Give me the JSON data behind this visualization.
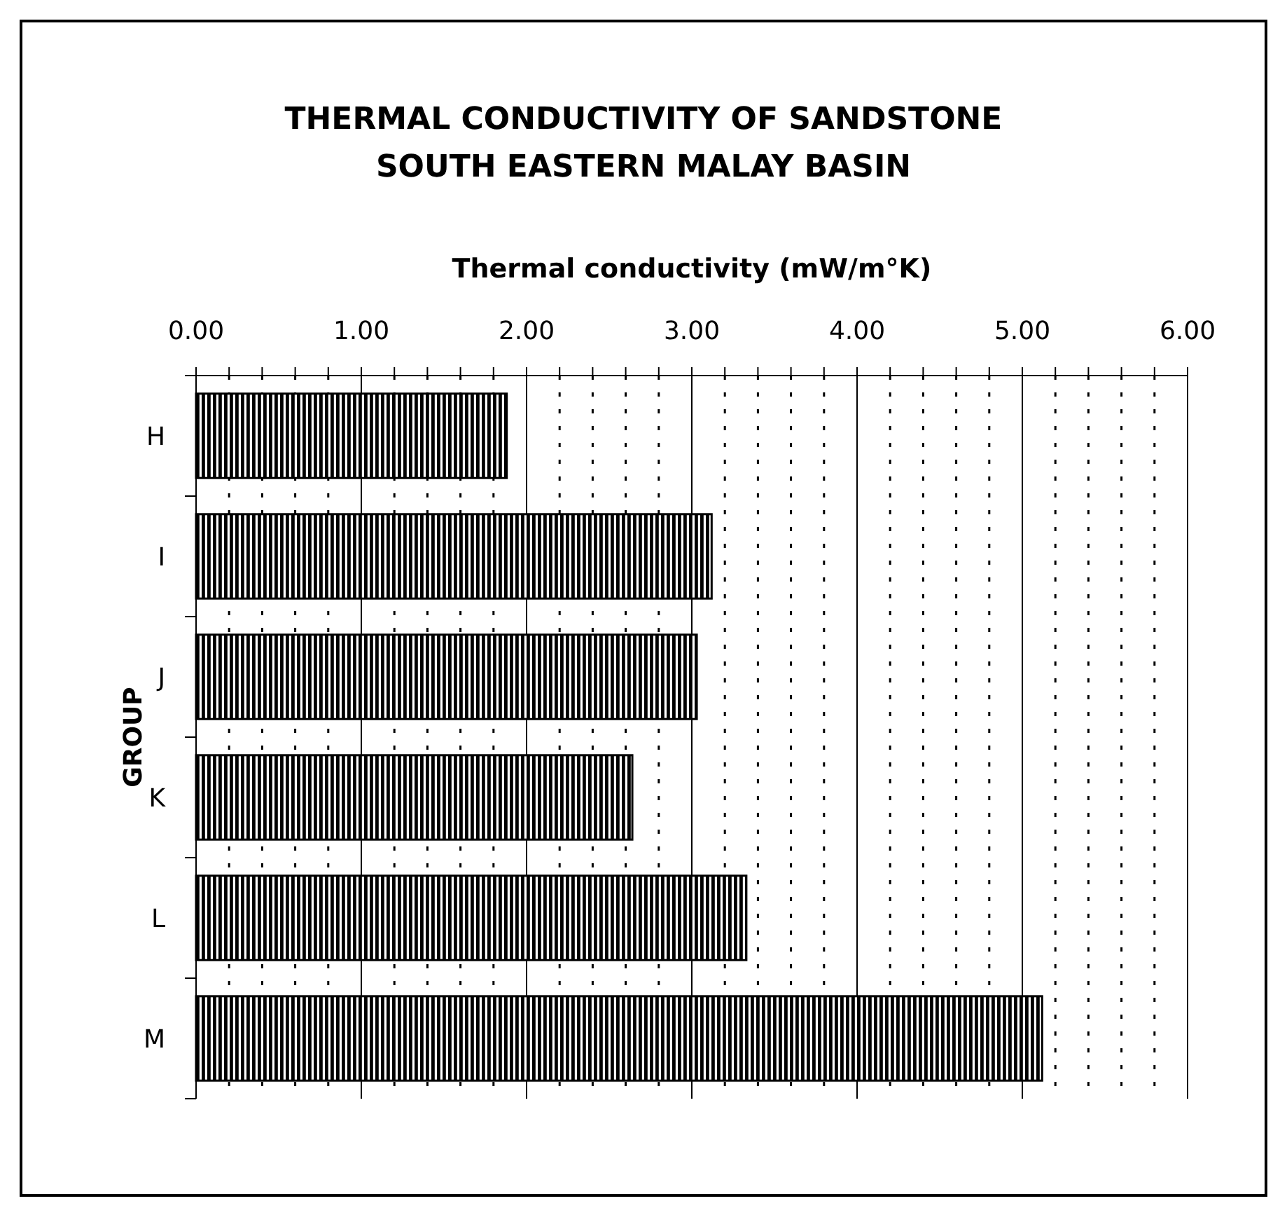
{
  "chart_data": {
    "type": "bar",
    "orientation": "horizontal",
    "title": "THERMAL CONDUCTIVITY OF SANDSTONE",
    "subtitle": "SOUTH EASTERN  MALAY BASIN",
    "xlabel": "Thermal conductivity (mW/m°K)",
    "ylabel": "GROUP",
    "categories": [
      "H",
      "I",
      "J",
      "K",
      "L",
      "M"
    ],
    "values": [
      1.88,
      3.12,
      3.03,
      2.64,
      3.33,
      5.12
    ],
    "color": "#000000",
    "xlim": [
      0,
      6
    ],
    "xticks": [
      {
        "value": 0,
        "label": "0.00"
      },
      {
        "value": 0.2,
        "label": null
      },
      {
        "value": 0.4,
        "label": null
      },
      {
        "value": 0.6,
        "label": null
      },
      {
        "value": 0.8,
        "label": null
      },
      {
        "value": 1,
        "label": "1.00"
      },
      {
        "value": 1.2,
        "label": null
      },
      {
        "value": 1.4,
        "label": null
      },
      {
        "value": 1.6,
        "label": null
      },
      {
        "value": 1.8,
        "label": null
      },
      {
        "value": 2,
        "label": "2.00"
      },
      {
        "value": 2.2,
        "label": null
      },
      {
        "value": 2.4,
        "label": null
      },
      {
        "value": 2.6,
        "label": null
      },
      {
        "value": 2.8,
        "label": null
      },
      {
        "value": 3,
        "label": "3.00"
      },
      {
        "value": 3.2,
        "label": null
      },
      {
        "value": 3.4,
        "label": null
      },
      {
        "value": 3.6,
        "label": null
      },
      {
        "value": 3.8,
        "label": null
      },
      {
        "value": 4,
        "label": "4.00"
      },
      {
        "value": 4.2,
        "label": null
      },
      {
        "value": 4.4,
        "label": null
      },
      {
        "value": 4.6,
        "label": null
      },
      {
        "value": 4.8,
        "label": null
      },
      {
        "value": 5,
        "label": "5.00"
      },
      {
        "value": 5.2,
        "label": null
      },
      {
        "value": 5.4,
        "label": null
      },
      {
        "value": 5.6,
        "label": null
      },
      {
        "value": 5.8,
        "label": null
      },
      {
        "value": 6,
        "label": "6.00"
      }
    ],
    "grid": "x"
  }
}
